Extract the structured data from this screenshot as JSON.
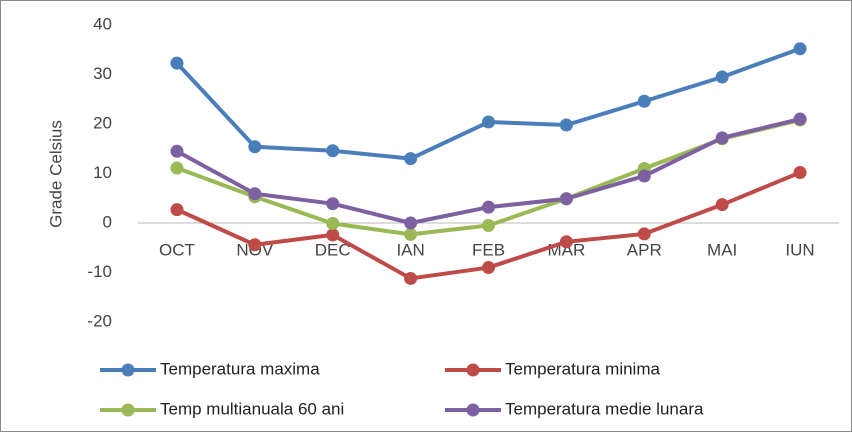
{
  "chart_data": {
    "type": "line",
    "y_label": "Grade Celsius",
    "categories": [
      "OCT",
      "NOV",
      "DEC",
      "IAN",
      "FEB",
      "MAR",
      "APR",
      "MAI",
      "IUN"
    ],
    "series": [
      {
        "name": "Temperatura maxima",
        "color": "#4a7ebb",
        "values": [
          32.3,
          15.4,
          14.6,
          13.0,
          20.4,
          19.8,
          24.6,
          29.5,
          35.2
        ]
      },
      {
        "name": "Temperatura minima",
        "color": "#be4b48",
        "values": [
          2.7,
          -4.4,
          -2.4,
          -11.2,
          -9.0,
          -3.8,
          -2.2,
          3.7,
          10.2
        ]
      },
      {
        "name": "Temp multianuala 60 ani",
        "color": "#98b954",
        "values": [
          11.1,
          5.3,
          -0.1,
          -2.3,
          -0.5,
          4.9,
          11.0,
          17.0,
          20.8
        ]
      },
      {
        "name": "Temperatura medie lunara",
        "color": "#7d60a0",
        "values": [
          14.5,
          5.9,
          3.9,
          0.0,
          3.2,
          4.9,
          9.5,
          17.2,
          21.0
        ]
      }
    ],
    "ylim": [
      -20,
      40
    ],
    "yticks": [
      -20,
      -10,
      0,
      10,
      20,
      30,
      40
    ],
    "grid": false
  }
}
